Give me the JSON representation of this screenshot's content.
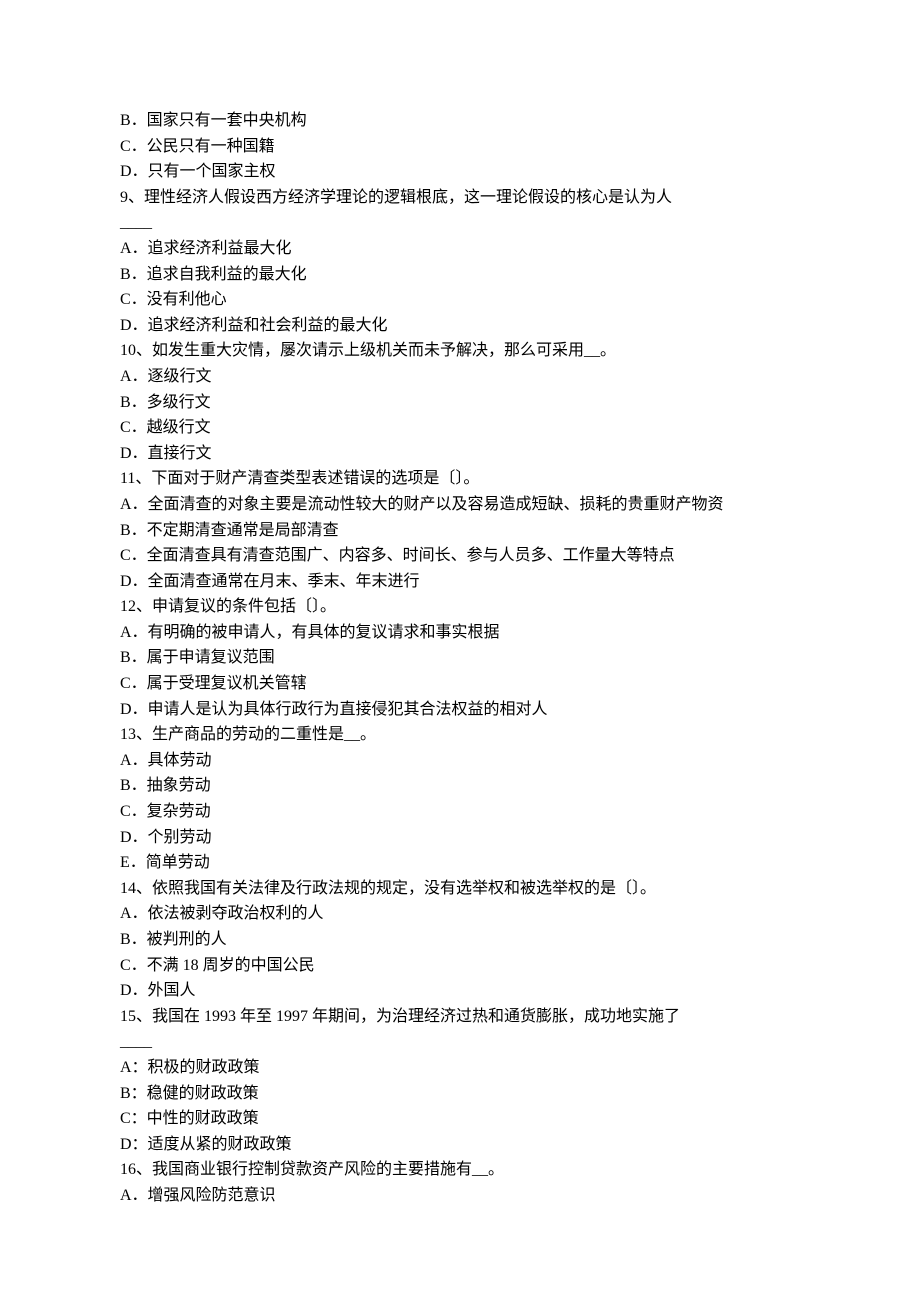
{
  "doc": {
    "font_family": "SimSun",
    "font_size_pt": 12,
    "text_color": "#000000",
    "background_color": "#ffffff"
  },
  "lines": {
    "q8_B": "B．国家只有一套中央机构",
    "q8_C": "C．公民只有一种国籍",
    "q8_D": "D．只有一个国家主权",
    "q9_stem": "9、理性经济人假设西方经济学理论的逻辑根底，这一理论假设的核心是认为人",
    "q9_blank": "____",
    "q9_A": "A．追求经济利益最大化",
    "q9_B": "B．追求自我利益的最大化",
    "q9_C": "C．没有利他心",
    "q9_D": "D．追求经济利益和社会利益的最大化",
    "q10_stem": "10、如发生重大灾情，屡次请示上级机关而未予解决，那么可采用__。",
    "q10_A": "A．逐级行文",
    "q10_B": "B．多级行文",
    "q10_C": "C．越级行文",
    "q10_D": "D．直接行文",
    "q11_stem": "11、下面对于财产清查类型表述错误的选项是〔〕。",
    "q11_A": "A．全面清查的对象主要是流动性较大的财产以及容易造成短缺、损耗的贵重财产物资",
    "q11_B": "B．不定期清查通常是局部清查",
    "q11_C": "C．全面清查具有清查范围广、内容多、时间长、参与人员多、工作量大等特点",
    "q11_D": "D．全面清查通常在月末、季末、年末进行",
    "q12_stem": "12、申请复议的条件包括〔〕。",
    "q12_A": "A．有明确的被申请人，有具体的复议请求和事实根据",
    "q12_B": "B．属于申请复议范围",
    "q12_C": "C．属于受理复议机关管辖",
    "q12_D": "D．申请人是认为具体行政行为直接侵犯其合法权益的相对人",
    "q13_stem": "13、生产商品的劳动的二重性是__。",
    "q13_A": "A．具体劳动",
    "q13_B": "B．抽象劳动",
    "q13_C": "C．复杂劳动",
    "q13_D": "D．个别劳动",
    "q13_E": "E．简单劳动",
    "q14_stem": "14、依照我国有关法律及行政法规的规定，没有选举权和被选举权的是〔〕。",
    "q14_A": "A．依法被剥夺政治权利的人",
    "q14_B": "B．被判刑的人",
    "q14_C": "C．不满 18 周岁的中国公民",
    "q14_D": "D．外国人",
    "q15_stem": "15、我国在 1993 年至 1997 年期间，为治理经济过热和通货膨胀，成功地实施了",
    "q15_blank": "____",
    "q15_A": "A：积极的财政政策",
    "q15_B": "B：稳健的财政政策",
    "q15_C": "C：中性的财政政策",
    "q15_D": "D：适度从紧的财政政策",
    "q16_stem": "16、我国商业银行控制贷款资产风险的主要措施有__。",
    "q16_A": "A．增强风险防范意识"
  }
}
